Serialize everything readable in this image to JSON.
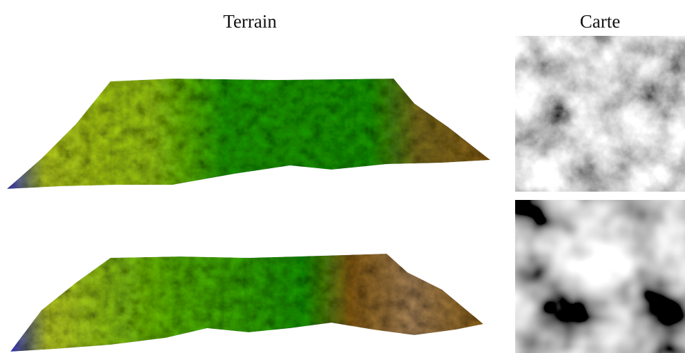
{
  "headers": {
    "terrain": "Terrain",
    "map": "Carte"
  }
}
